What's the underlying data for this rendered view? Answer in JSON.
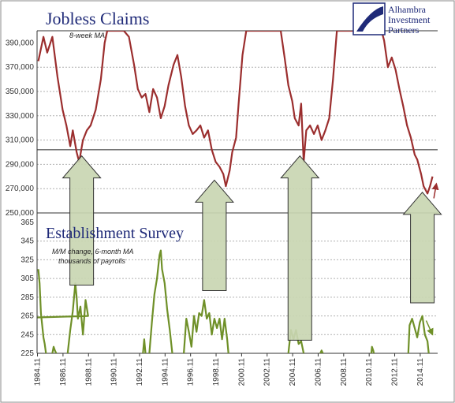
{
  "logo": {
    "lines": [
      "Alhambra",
      "Investment",
      "Partners"
    ]
  },
  "colors": {
    "claims": "#9b2e2e",
    "payrolls": "#6f9028",
    "arrow_fill": "#c9d6b2",
    "arrow_stroke": "#333333",
    "title": "#1f2a78",
    "logo_blue": "#1f2a78"
  },
  "chart_data": [
    {
      "type": "line",
      "title": "Jobless Claims",
      "subtitle": "8-week MA",
      "ylim": [
        250000,
        400000
      ],
      "yticks": [
        "390,000",
        "370,000",
        "350,000",
        "330,000",
        "310,000",
        "290,000",
        "270,000",
        "250,000"
      ],
      "reference_line": 302000,
      "xlim": [
        1984.8,
        2016.2
      ],
      "series": [
        {
          "values": [
            [
              1984.9,
              375000
            ],
            [
              1985.3,
              395000
            ],
            [
              1985.6,
              382000
            ],
            [
              1986.0,
              395000
            ],
            [
              1986.4,
              362000
            ],
            [
              1986.8,
              335000
            ],
            [
              1987.1,
              322000
            ],
            [
              1987.4,
              305000
            ],
            [
              1987.6,
              318000
            ],
            [
              1987.9,
              300000
            ],
            [
              1988.1,
              292000
            ],
            [
              1988.4,
              310000
            ],
            [
              1988.7,
              318000
            ],
            [
              1989.0,
              322000
            ],
            [
              1989.4,
              335000
            ],
            [
              1989.8,
              360000
            ],
            [
              1990.1,
              390000
            ],
            [
              1990.3,
              400000
            ],
            [
              1991.6,
              400000
            ],
            [
              1992.0,
              395000
            ],
            [
              1992.4,
              372000
            ],
            [
              1992.7,
              352000
            ],
            [
              1993.0,
              345000
            ],
            [
              1993.3,
              348000
            ],
            [
              1993.6,
              333000
            ],
            [
              1993.9,
              352000
            ],
            [
              1994.2,
              345000
            ],
            [
              1994.5,
              328000
            ],
            [
              1994.8,
              338000
            ],
            [
              1995.1,
              355000
            ],
            [
              1995.5,
              372000
            ],
            [
              1995.8,
              380000
            ],
            [
              1996.1,
              362000
            ],
            [
              1996.4,
              338000
            ],
            [
              1996.7,
              322000
            ],
            [
              1997.0,
              315000
            ],
            [
              1997.3,
              318000
            ],
            [
              1997.6,
              322000
            ],
            [
              1997.9,
              312000
            ],
            [
              1998.2,
              318000
            ],
            [
              1998.5,
              302000
            ],
            [
              1998.8,
              292000
            ],
            [
              1999.1,
              288000
            ],
            [
              1999.4,
              282000
            ],
            [
              1999.6,
              272000
            ],
            [
              1999.9,
              285000
            ],
            [
              2000.1,
              300000
            ],
            [
              2000.4,
              312000
            ],
            [
              2000.6,
              340000
            ],
            [
              2000.9,
              380000
            ],
            [
              2001.2,
              400000
            ],
            [
              2003.9,
              400000
            ],
            [
              2004.2,
              378000
            ],
            [
              2004.5,
              355000
            ],
            [
              2004.8,
              342000
            ],
            [
              2005.0,
              328000
            ],
            [
              2005.3,
              322000
            ],
            [
              2005.5,
              340000
            ],
            [
              2005.7,
              292000
            ],
            [
              2005.9,
              318000
            ],
            [
              2006.2,
              322000
            ],
            [
              2006.5,
              315000
            ],
            [
              2006.8,
              322000
            ],
            [
              2007.1,
              310000
            ],
            [
              2007.4,
              318000
            ],
            [
              2007.7,
              328000
            ],
            [
              2008.0,
              360000
            ],
            [
              2008.3,
              400000
            ],
            [
              2011.8,
              400000
            ],
            [
              2012.0,
              392000
            ],
            [
              2012.3,
              370000
            ],
            [
              2012.6,
              378000
            ],
            [
              2012.9,
              368000
            ],
            [
              2013.2,
              352000
            ],
            [
              2013.5,
              338000
            ],
            [
              2013.8,
              322000
            ],
            [
              2014.1,
              312000
            ],
            [
              2014.4,
              298000
            ],
            [
              2014.6,
              294000
            ],
            [
              2014.9,
              282000
            ],
            [
              2015.1,
              272000
            ],
            [
              2015.4,
              266000
            ],
            [
              2015.6,
              272000
            ],
            [
              2015.8,
              280000
            ]
          ]
        }
      ],
      "projection_arrow": [
        [
          2015.9,
          262000
        ],
        [
          2016.1,
          274000
        ]
      ]
    },
    {
      "type": "line",
      "title": "Establishment Survey",
      "subtitle": [
        "M/M change, 6-month MA",
        "thousands of payrolls"
      ],
      "ylim": [
        225,
        365
      ],
      "yticks": [
        "365",
        "345",
        "325",
        "305",
        "285",
        "265",
        "245",
        "225"
      ],
      "xticks": [
        "1984.11",
        "1986.11",
        "1988.11",
        "1990.11",
        "1992.11",
        "1994.11",
        "1996.11",
        "1998.11",
        "2000.11",
        "2002.11",
        "2004.11",
        "2006.11",
        "2008.11",
        "2010.11",
        "2012.11",
        "2014.11"
      ],
      "series": [
        {
          "segments": [
            [
              [
                1984.9,
                315000
              ],
              [
                1985.0,
                300000
              ],
              [
                1985.1,
                268000
              ],
              [
                1985.2,
                255000
              ],
              [
                1985.3,
                242000
              ],
              [
                1985.4,
                235000
              ],
              [
                1985.5,
                225000
              ]
            ],
            [
              [
                1987.2,
                225000
              ],
              [
                1987.4,
                250000
              ],
              [
                1987.6,
                270000
              ],
              [
                1987.8,
                300000
              ],
              [
                1987.9,
                285000
              ],
              [
                1988.0,
                262000
              ],
              [
                1988.2,
                275000
              ],
              [
                1988.4,
                245000
              ],
              [
                1988.6,
                282000
              ],
              [
                1988.8,
                265000
              ],
              [
                1888.9,
                225000
              ]
            ],
            [
              [
                1993.6,
                225000
              ],
              [
                1993.8,
                258000
              ],
              [
                1994.0,
                288000
              ],
              [
                1994.2,
                305000
              ],
              [
                1994.4,
                330000
              ],
              [
                1994.5,
                335000
              ],
              [
                1994.6,
                315000
              ],
              [
                1994.8,
                300000
              ],
              [
                1995.0,
                272000
              ],
              [
                1995.2,
                250000
              ],
              [
                1995.4,
                225000
              ]
            ],
            [
              [
                1996.3,
                225000
              ],
              [
                1996.5,
                262000
              ],
              [
                1996.7,
                248000
              ],
              [
                1996.9,
                232000
              ],
              [
                1997.1,
                265000
              ],
              [
                1997.3,
                248000
              ],
              [
                1997.5,
                268000
              ],
              [
                1997.7,
                265000
              ],
              [
                1997.9,
                282000
              ],
              [
                1998.1,
                262000
              ],
              [
                1998.3,
                268000
              ],
              [
                1998.5,
                245000
              ],
              [
                1998.7,
                262000
              ],
              [
                1998.9,
                252000
              ],
              [
                1999.1,
                262000
              ],
              [
                1999.3,
                240000
              ],
              [
                1999.5,
                262000
              ],
              [
                1999.7,
                240000
              ],
              [
                1999.8,
                225000
              ]
            ],
            [
              [
                2004.5,
                225000
              ],
              [
                2004.7,
                250000
              ],
              [
                2004.9,
                240000
              ],
              [
                2005.1,
                250000
              ],
              [
                2005.3,
                235000
              ],
              [
                2005.5,
                238000
              ],
              [
                2005.7,
                225000
              ]
            ],
            [
              [
                2013.9,
                225000
              ],
              [
                2014.0,
                255000
              ],
              [
                2014.2,
                262000
              ],
              [
                2014.4,
                252000
              ],
              [
                2014.6,
                242000
              ],
              [
                2014.8,
                258000
              ],
              [
                2015.0,
                265000
              ],
              [
                2015.2,
                245000
              ],
              [
                2015.4,
                238000
              ],
              [
                2015.5,
                225000
              ]
            ],
            [
              [
                2011.0,
                225000
              ],
              [
                2011.05,
                232000
              ],
              [
                2011.15,
                228000
              ],
              [
                2011.2,
                225000
              ]
            ],
            [
              [
                1986.0,
                225000
              ],
              [
                1986.1,
                232000
              ],
              [
                1986.2,
                228000
              ],
              [
                1986.3,
                225000
              ]
            ],
            [
              [
                1993.1,
                225000
              ],
              [
                1993.2,
                240000
              ],
              [
                1993.3,
                225000
              ]
            ],
            [
              [
                2007.0,
                225000
              ],
              [
                2007.1,
                228000
              ],
              [
                2007.2,
                225000
              ]
            ]
          ]
        }
      ],
      "projection_arrow": [
        [
          2015.3,
          260000
        ],
        [
          2015.8,
          245000
        ]
      ]
    }
  ],
  "annotation_arrows": [
    {
      "x": 1988.3,
      "tip": 297000,
      "base": 298,
      "note": "arrow from payroll trough to claims low"
    },
    {
      "x": 1998.7,
      "tip": 277000,
      "base": 292,
      "note": "arrow"
    },
    {
      "x": 2005.4,
      "tip": 297000,
      "base": 239,
      "note": "arrow"
    },
    {
      "x": 2015.0,
      "tip": 267000,
      "base": 279,
      "note": "arrow"
    }
  ]
}
